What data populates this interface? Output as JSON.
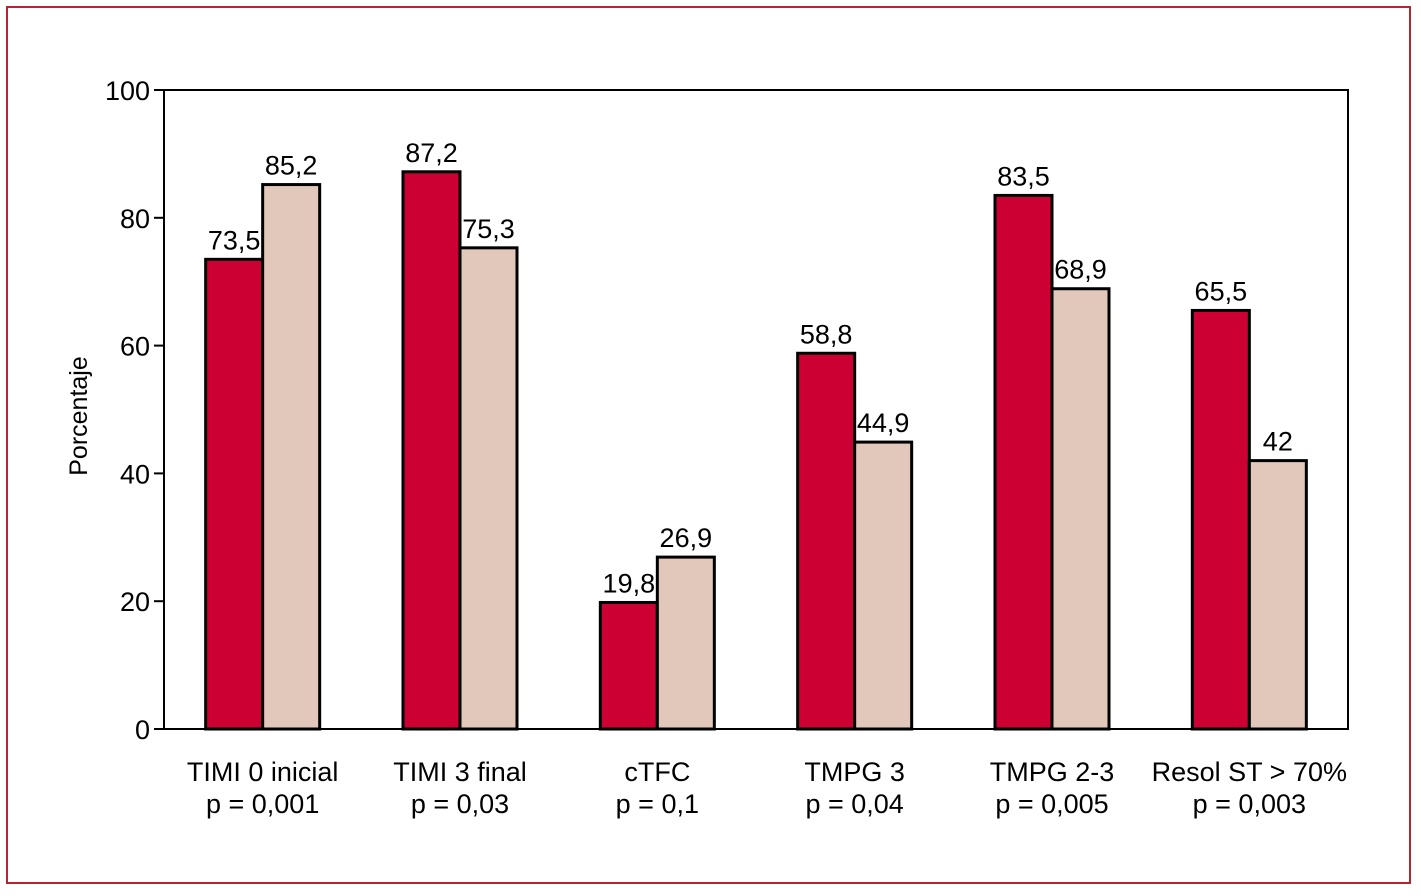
{
  "chart_data": {
    "type": "bar",
    "title": "",
    "xlabel": "",
    "ylabel": "Porcentaje",
    "ylim": [
      0,
      100
    ],
    "yticks": [
      0,
      20,
      40,
      60,
      80,
      100
    ],
    "grid": false,
    "legend": "none",
    "categories": [
      {
        "name": "TIMI 0 inicial",
        "p": "p = 0,001"
      },
      {
        "name": "TIMI 3 final",
        "p": "p = 0,03"
      },
      {
        "name": "cTFC",
        "p": "p = 0,1"
      },
      {
        "name": "TMPG 3",
        "p": "p = 0,04"
      },
      {
        "name": "TMPG 2-3",
        "p": "p = 0,005"
      },
      {
        "name": "Resol ST > 70%",
        "p": "p = 0,003"
      }
    ],
    "series": [
      {
        "color": "#cc0033",
        "values": [
          73.5,
          87.2,
          19.8,
          58.8,
          83.5,
          65.5
        ],
        "labels": [
          "73,5",
          "87,2",
          "19,8",
          "58,8",
          "83,5",
          "65,5"
        ]
      },
      {
        "color": "#e2c8bb",
        "values": [
          85.2,
          75.3,
          26.9,
          44.9,
          68.9,
          42
        ],
        "labels": [
          "85,2",
          "75,3",
          "26,9",
          "44,9",
          "68,9",
          "42"
        ]
      }
    ]
  },
  "colors": {
    "frame": "#b3262f",
    "axis": "#000000"
  }
}
